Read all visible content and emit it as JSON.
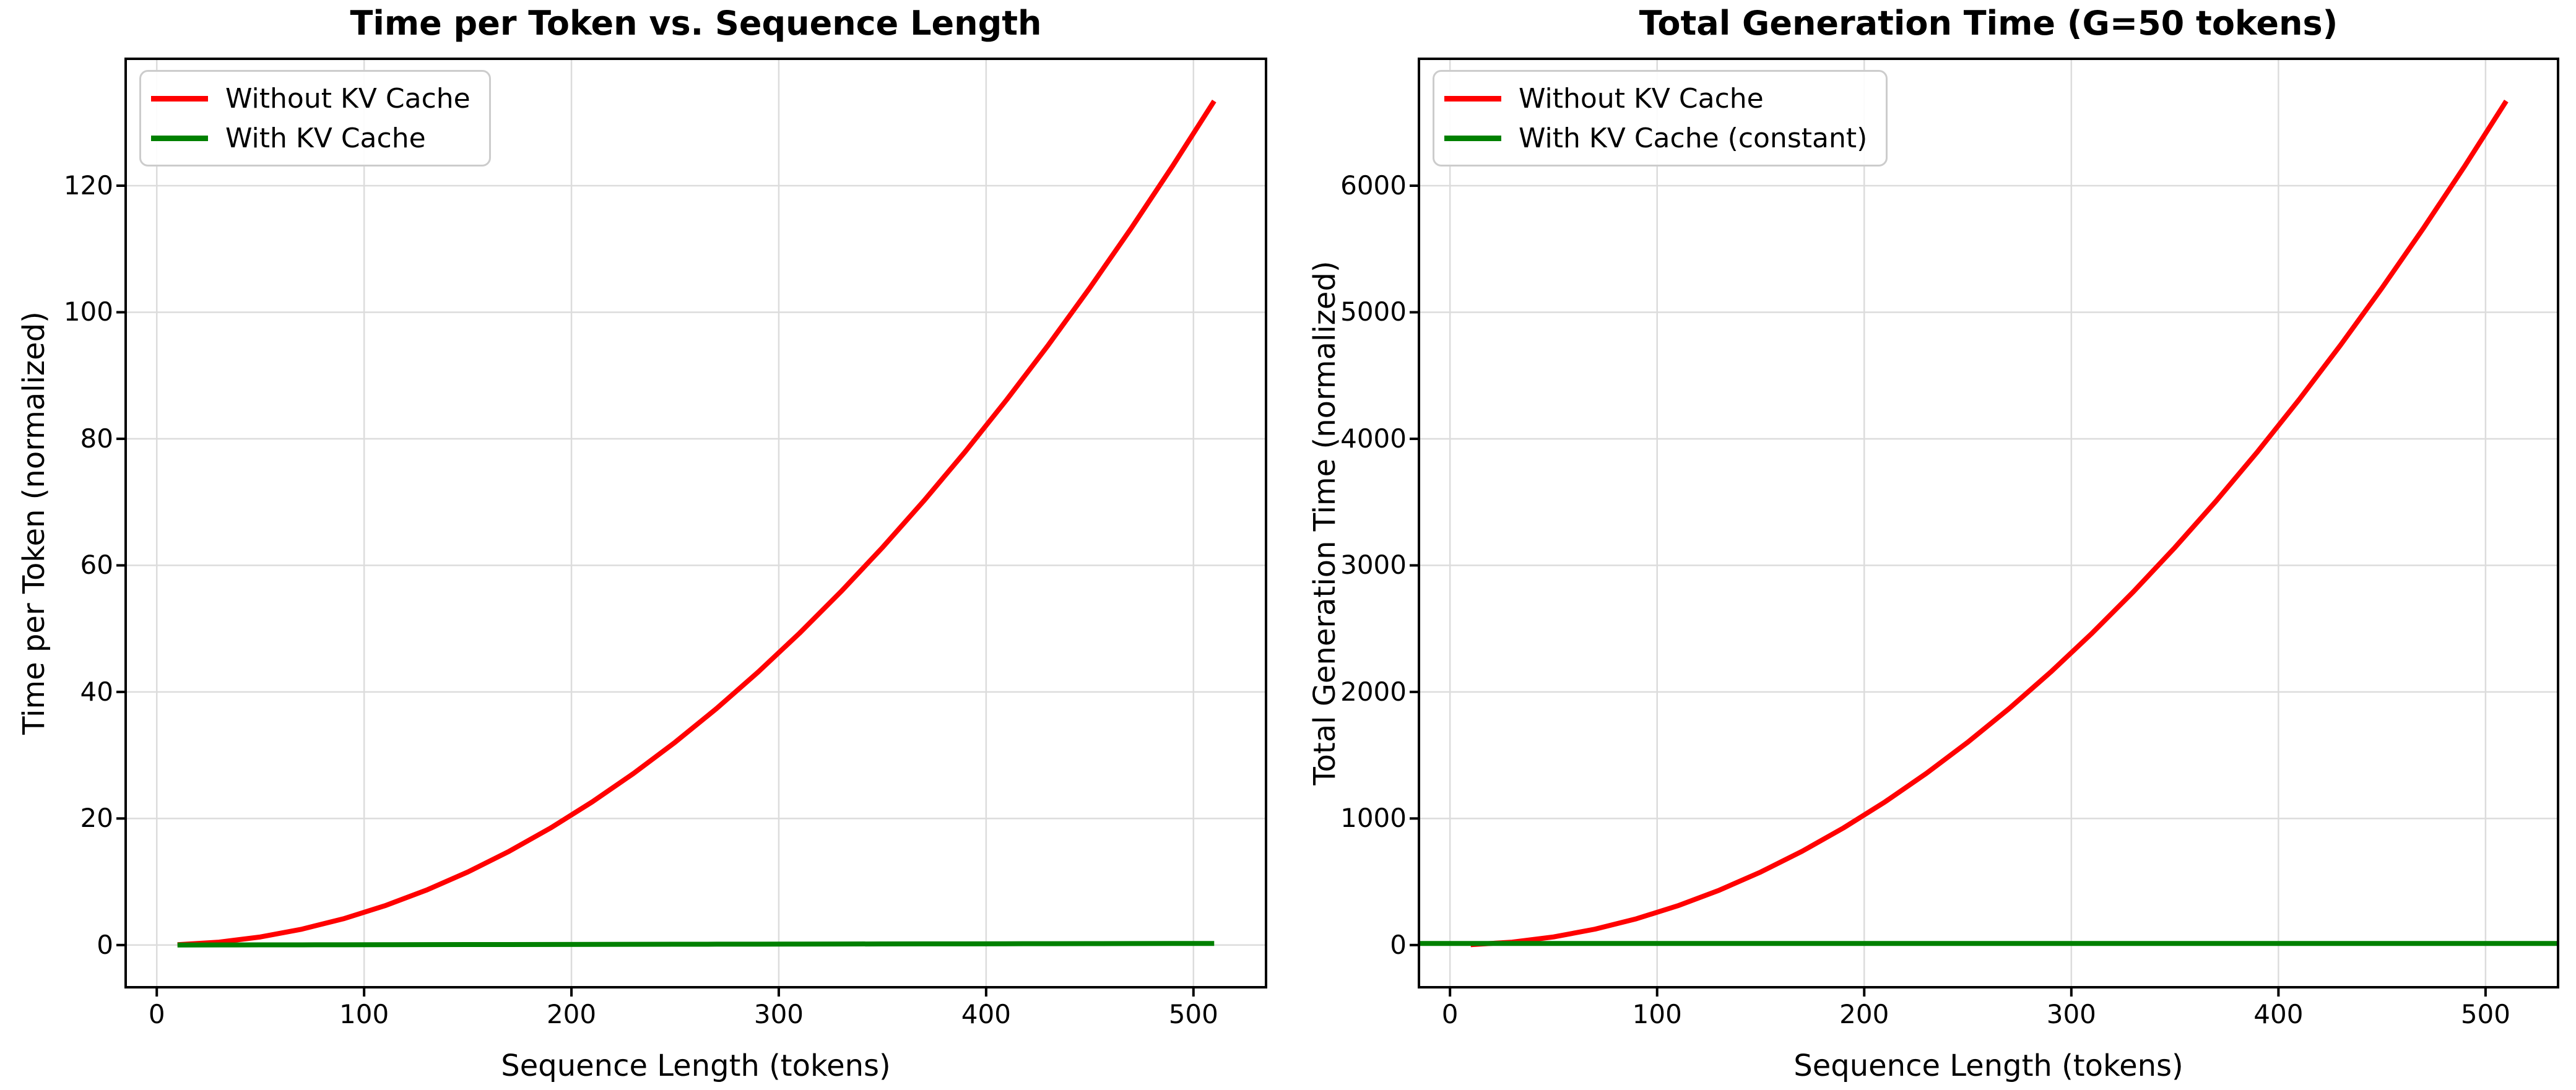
{
  "figure": {
    "background": "#ffffff",
    "grid_color": "#dcdcdc",
    "spine_color": "#000000",
    "accent_red": "#ff0000",
    "accent_green": "#008000"
  },
  "chart_data": [
    {
      "type": "line",
      "title": "Time per Token vs. Sequence Length",
      "xlabel": "Sequence Length (tokens)",
      "ylabel": "Time per Token (normalized)",
      "xlim": [
        -15,
        535
      ],
      "ylim": [
        -6.67,
        140.05
      ],
      "xticks": [
        0,
        100,
        200,
        300,
        400,
        500
      ],
      "yticks": [
        0,
        20,
        40,
        60,
        80,
        100,
        120
      ],
      "grid": true,
      "legend_position": "upper left",
      "x": [
        10,
        30,
        50,
        70,
        90,
        110,
        130,
        150,
        170,
        190,
        210,
        230,
        250,
        270,
        290,
        310,
        330,
        350,
        370,
        390,
        410,
        430,
        450,
        470,
        490,
        510
      ],
      "series": [
        {
          "label": "Without KV Cache",
          "color": "#ff0000",
          "values": [
            0.05,
            0.46,
            1.28,
            2.51,
            4.15,
            6.21,
            8.67,
            11.54,
            14.82,
            18.51,
            22.62,
            27.13,
            32.05,
            37.38,
            43.13,
            49.28,
            55.85,
            62.82,
            70.21,
            78.0,
            86.21,
            94.82,
            103.85,
            113.28,
            123.13,
            133.38
          ]
        },
        {
          "label": "With KV Cache",
          "color": "#008000",
          "values": [
            0.005,
            0.015,
            0.025,
            0.035,
            0.045,
            0.055,
            0.065,
            0.075,
            0.085,
            0.095,
            0.105,
            0.115,
            0.125,
            0.135,
            0.145,
            0.155,
            0.165,
            0.175,
            0.185,
            0.195,
            0.205,
            0.215,
            0.225,
            0.235,
            0.245,
            0.255
          ]
        }
      ]
    },
    {
      "type": "line",
      "title": "Total Generation Time (G=50 tokens)",
      "xlabel": "Sequence Length (tokens)",
      "ylabel": "Total Generation Time (normalized)",
      "xlim": [
        -15,
        535
      ],
      "ylim": [
        -333.5,
        7002.7
      ],
      "xticks": [
        0,
        100,
        200,
        300,
        400,
        500
      ],
      "yticks": [
        0,
        1000,
        2000,
        3000,
        4000,
        5000,
        6000
      ],
      "grid": true,
      "legend_position": "upper left",
      "x": [
        10,
        30,
        50,
        70,
        90,
        110,
        130,
        150,
        170,
        190,
        210,
        230,
        250,
        270,
        290,
        310,
        330,
        350,
        370,
        390,
        410,
        430,
        450,
        470,
        490,
        510
      ],
      "series": [
        {
          "label": "Without KV Cache",
          "color": "#ff0000",
          "values": [
            2.6,
            23.1,
            64.1,
            125.6,
            207.7,
            310.3,
            433.3,
            576.9,
            741.0,
            925.6,
            1130.8,
            1356.4,
            1602.6,
            1869.2,
            2156.4,
            2464.1,
            2792.3,
            3141.0,
            3510.3,
            3900.0,
            4310.3,
            4741.0,
            5192.3,
            5664.1,
            6156.4,
            6669.2
          ]
        },
        {
          "label": "With KV Cache (constant)",
          "color": "#008000",
          "hline": 12.5
        }
      ]
    }
  ]
}
